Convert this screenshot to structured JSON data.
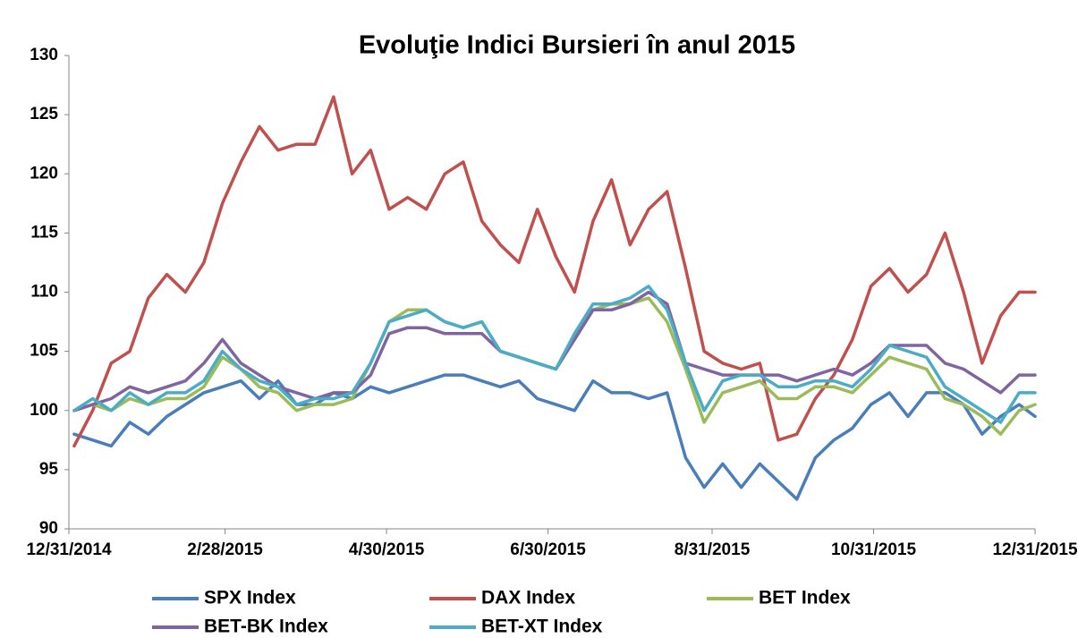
{
  "chart_data": {
    "type": "line",
    "title": "Evoluţie Indici Bursieri în anul 2015",
    "x": [
      "2015-01-02",
      "2015-01-09",
      "2015-01-16",
      "2015-01-23",
      "2015-01-30",
      "2015-02-06",
      "2015-02-13",
      "2015-02-20",
      "2015-02-27",
      "2015-03-06",
      "2015-03-13",
      "2015-03-20",
      "2015-03-27",
      "2015-04-03",
      "2015-04-10",
      "2015-04-17",
      "2015-04-24",
      "2015-05-01",
      "2015-05-08",
      "2015-05-15",
      "2015-05-22",
      "2015-05-29",
      "2015-06-05",
      "2015-06-12",
      "2015-06-19",
      "2015-06-26",
      "2015-07-03",
      "2015-07-10",
      "2015-07-17",
      "2015-07-24",
      "2015-07-31",
      "2015-08-07",
      "2015-08-14",
      "2015-08-21",
      "2015-08-28",
      "2015-09-04",
      "2015-09-11",
      "2015-09-18",
      "2015-09-25",
      "2015-10-02",
      "2015-10-09",
      "2015-10-16",
      "2015-10-23",
      "2015-10-30",
      "2015-11-06",
      "2015-11-13",
      "2015-11-20",
      "2015-11-27",
      "2015-12-04",
      "2015-12-11",
      "2015-12-18",
      "2015-12-25",
      "2015-12-31"
    ],
    "series": [
      {
        "name": "SPX Index",
        "color": "#4a7ebb",
        "values": [
          98,
          97.5,
          97,
          99,
          98,
          99.5,
          100.5,
          101.5,
          102,
          102.5,
          101,
          102.5,
          100.5,
          100.5,
          101.5,
          101,
          102,
          101.5,
          102,
          102.5,
          103,
          103,
          102.5,
          102,
          102.5,
          101,
          100.5,
          100,
          102.5,
          101.5,
          101.5,
          101,
          101.5,
          96,
          93.5,
          95.5,
          93.5,
          95.5,
          94,
          92.5,
          96,
          97.5,
          98.5,
          100.5,
          101.5,
          99.5,
          101.5,
          101.5,
          100.5,
          98,
          99.5,
          100.5,
          99.5
        ]
      },
      {
        "name": "DAX Index",
        "color": "#c0504d",
        "values": [
          97,
          100,
          104,
          105,
          109.5,
          111.5,
          110,
          112.5,
          117.5,
          121,
          124,
          122,
          122.5,
          122.5,
          126.5,
          120,
          122,
          117,
          118,
          117,
          120,
          121,
          116,
          114,
          112.5,
          117,
          113,
          110,
          116,
          119.5,
          114,
          117,
          118.5,
          112,
          105,
          104,
          103.5,
          104,
          97.5,
          98,
          101,
          103,
          106,
          110.5,
          112,
          110,
          111.5,
          115,
          110,
          104,
          108,
          110,
          110
        ]
      },
      {
        "name": "BET Index",
        "color": "#9bbb59",
        "values": [
          100,
          100.5,
          100,
          101,
          100.5,
          101,
          101,
          102,
          104.5,
          103.5,
          102,
          101.5,
          100,
          100.5,
          100.5,
          101,
          104,
          107.5,
          108.5,
          108.5,
          107.5,
          107,
          107.5,
          105,
          104.5,
          104,
          103.5,
          106,
          108.5,
          109,
          109,
          109.5,
          107.5,
          103.5,
          99,
          101.5,
          102,
          102.5,
          101,
          101,
          102,
          102,
          101.5,
          103,
          104.5,
          104,
          103.5,
          101,
          100.5,
          99.5,
          98,
          100,
          100.5
        ]
      },
      {
        "name": "BET-BK Index",
        "color": "#8064a2",
        "values": [
          100,
          100.5,
          101,
          102,
          101.5,
          102,
          102.5,
          104,
          106,
          104,
          103,
          102,
          101.5,
          101,
          101.5,
          101.5,
          103,
          106.5,
          107,
          107,
          106.5,
          106.5,
          106.5,
          105,
          104.5,
          104,
          103.5,
          106,
          108.5,
          108.5,
          109,
          110,
          109,
          104,
          103.5,
          103,
          103,
          103,
          103,
          102.5,
          103,
          103.5,
          103,
          104,
          105.5,
          105.5,
          105.5,
          104,
          103.5,
          102.5,
          101.5,
          103,
          103
        ]
      },
      {
        "name": "BET-XT Index",
        "color": "#4bacc6",
        "values": [
          100,
          101,
          100,
          101.5,
          100.5,
          101.5,
          101.5,
          102.5,
          105,
          103.5,
          102.5,
          102,
          100.5,
          101,
          101,
          101.5,
          104,
          107.5,
          108,
          108.5,
          107.5,
          107,
          107.5,
          105,
          104.5,
          104,
          103.5,
          106.5,
          109,
          109,
          109.5,
          110.5,
          108.5,
          104,
          100,
          102.5,
          103,
          103,
          102,
          102,
          102.5,
          102.5,
          102,
          103.5,
          105.5,
          105,
          104.5,
          102,
          101,
          100,
          99,
          101.5,
          101.5
        ]
      }
    ],
    "xlim": [
      "2014-12-31",
      "2015-12-31"
    ],
    "xticks": [
      {
        "value": "2014-12-31",
        "label": "12/31/2014"
      },
      {
        "value": "2015-02-28",
        "label": "2/28/2015"
      },
      {
        "value": "2015-04-30",
        "label": "4/30/2015"
      },
      {
        "value": "2015-06-30",
        "label": "6/30/2015"
      },
      {
        "value": "2015-08-31",
        "label": "8/31/2015"
      },
      {
        "value": "2015-10-31",
        "label": "10/31/2015"
      },
      {
        "value": "2015-12-31",
        "label": "12/31/2015"
      }
    ],
    "ylim": [
      90,
      130
    ],
    "yticks": [
      90,
      95,
      100,
      105,
      110,
      115,
      120,
      125,
      130
    ],
    "grid": false,
    "legend": "bottom"
  }
}
